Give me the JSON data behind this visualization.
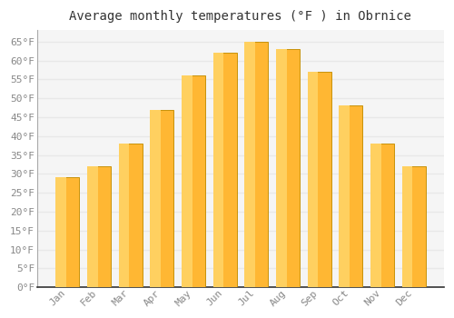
{
  "title": "Average monthly temperatures (°F ) in Obrnice",
  "months": [
    "Jan",
    "Feb",
    "Mar",
    "Apr",
    "May",
    "Jun",
    "Jul",
    "Aug",
    "Sep",
    "Oct",
    "Nov",
    "Dec"
  ],
  "values": [
    29,
    32,
    38,
    47,
    56,
    62,
    65,
    63,
    57,
    48,
    38,
    32
  ],
  "bar_color_left": "#FFB300",
  "bar_color_right": "#FFA000",
  "bar_color_light": "#FFD54F",
  "bar_edge_color": "#B8860B",
  "figure_bg": "#ffffff",
  "plot_bg": "#f5f5f5",
  "grid_color": "#e8e8e8",
  "title_color": "#333333",
  "tick_color": "#888888",
  "spine_color": "#aaaaaa",
  "ylim": [
    0,
    68
  ],
  "yticks": [
    0,
    5,
    10,
    15,
    20,
    25,
    30,
    35,
    40,
    45,
    50,
    55,
    60,
    65
  ],
  "title_fontsize": 10,
  "tick_fontsize": 8,
  "bar_width": 0.75
}
